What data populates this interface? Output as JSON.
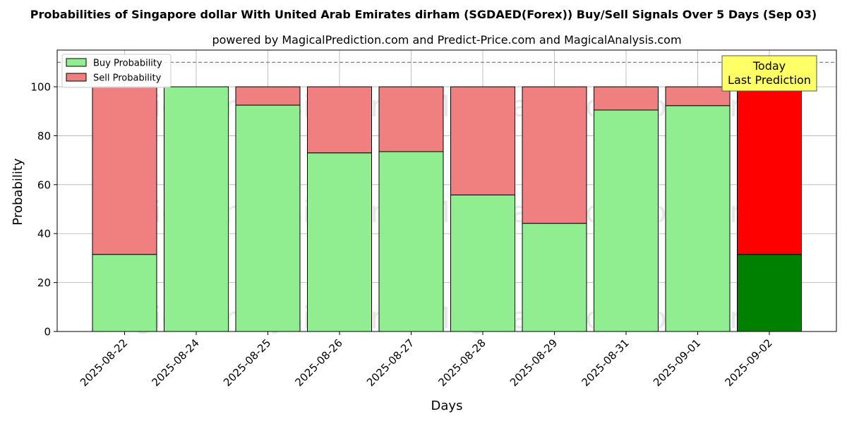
{
  "chart_data": {
    "type": "bar",
    "stacked": true,
    "title": "Probabilities of Singapore dollar With United Arab Emirates dirham (SGDAED(Forex)) Buy/Sell Signals Over 5 Days (Sep 03)",
    "subtitle": "powered by MagicalPrediction.com and Predict-Price.com and MagicalAnalysis.com",
    "xlabel": "Days",
    "ylabel": "Probability",
    "ylim": [
      0,
      115
    ],
    "yticks": [
      0,
      20,
      40,
      60,
      80,
      100
    ],
    "grid": true,
    "legend_position": "top-left",
    "categories": [
      "2025-08-22",
      "2025-08-24",
      "2025-08-25",
      "2025-08-26",
      "2025-08-27",
      "2025-08-28",
      "2025-08-29",
      "2025-08-31",
      "2025-09-01",
      "2025-09-02"
    ],
    "series": [
      {
        "name": "Buy Probability",
        "color": "#90ee90",
        "highlight_color": "#008000",
        "values": [
          31.5,
          100,
          92.5,
          73,
          73.5,
          55.8,
          44.2,
          90.5,
          92.3,
          31.5
        ]
      },
      {
        "name": "Sell Probability",
        "color": "#f08080",
        "highlight_color": "#ff0000",
        "values": [
          68.5,
          0,
          7.5,
          27,
          26.5,
          44.2,
          55.8,
          9.5,
          7.7,
          68.5
        ]
      }
    ],
    "highlight_index": 9,
    "reference_line": {
      "y": 110,
      "style": "dashed",
      "color": "#808080"
    },
    "annotation": {
      "lines": [
        "Today",
        "Last Prediction"
      ],
      "background": "#ffff66",
      "category_index": 9
    },
    "watermarks": [
      "MagicalAnalysis.com",
      "MagicalPrediction.com",
      "MagicalAnalysis.com",
      "MagicalPrediction.com",
      "MagicalAnalysis.com",
      "MagicalPrediction.com"
    ]
  }
}
